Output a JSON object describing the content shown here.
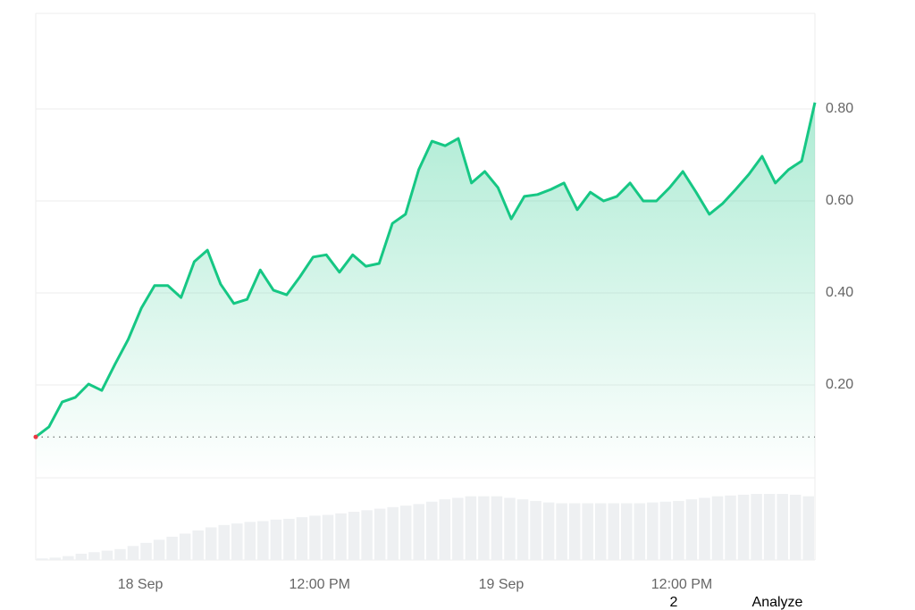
{
  "chart_data": {
    "type": "line",
    "color": "#16c784",
    "values": [
      0.087,
      0.109,
      0.163,
      0.173,
      0.202,
      0.188,
      0.245,
      0.299,
      0.367,
      0.416,
      0.416,
      0.39,
      0.468,
      0.493,
      0.419,
      0.377,
      0.386,
      0.45,
      0.406,
      0.396,
      0.435,
      0.478,
      0.483,
      0.445,
      0.483,
      0.458,
      0.464,
      0.551,
      0.571,
      0.668,
      0.73,
      0.72,
      0.736,
      0.639,
      0.664,
      0.629,
      0.561,
      0.61,
      0.614,
      0.625,
      0.639,
      0.581,
      0.619,
      0.6,
      0.61,
      0.639,
      0.6,
      0.6,
      0.629,
      0.664,
      0.619,
      0.571,
      0.594,
      0.625,
      0.658,
      0.697,
      0.639,
      0.668,
      0.687,
      0.814
    ],
    "volume": [
      2,
      3,
      5,
      8,
      10,
      12,
      14,
      18,
      22,
      26,
      30,
      34,
      38,
      42,
      45,
      47,
      49,
      50,
      52,
      53,
      55,
      57,
      58,
      60,
      62,
      64,
      66,
      68,
      70,
      72,
      75,
      78,
      80,
      82,
      82,
      82,
      80,
      78,
      76,
      74,
      73,
      73,
      73,
      73,
      73,
      73,
      73,
      74,
      75,
      76,
      78,
      80,
      82,
      83,
      84,
      85,
      85,
      85,
      84,
      82
    ],
    "volume_ylim": [
      0,
      100
    ],
    "xlim": [
      0,
      59
    ],
    "xticks": [
      {
        "value": 7.92,
        "label": "18 Sep"
      },
      {
        "value": 21.5,
        "label": "12:00 PM"
      },
      {
        "value": 35.25,
        "label": "19 Sep"
      },
      {
        "value": 48.92,
        "label": "12:00 PM"
      }
    ],
    "ylim": [
      0,
      1.0
    ],
    "yticks": [
      {
        "value": 0.2,
        "label": "0.20"
      },
      {
        "value": 0.4,
        "label": "0.40"
      },
      {
        "value": 0.6,
        "label": "0.60"
      },
      {
        "value": 0.8,
        "label": "0.80"
      }
    ],
    "grid": true
  },
  "overlay": {
    "page": "2",
    "action": "Analyze"
  }
}
